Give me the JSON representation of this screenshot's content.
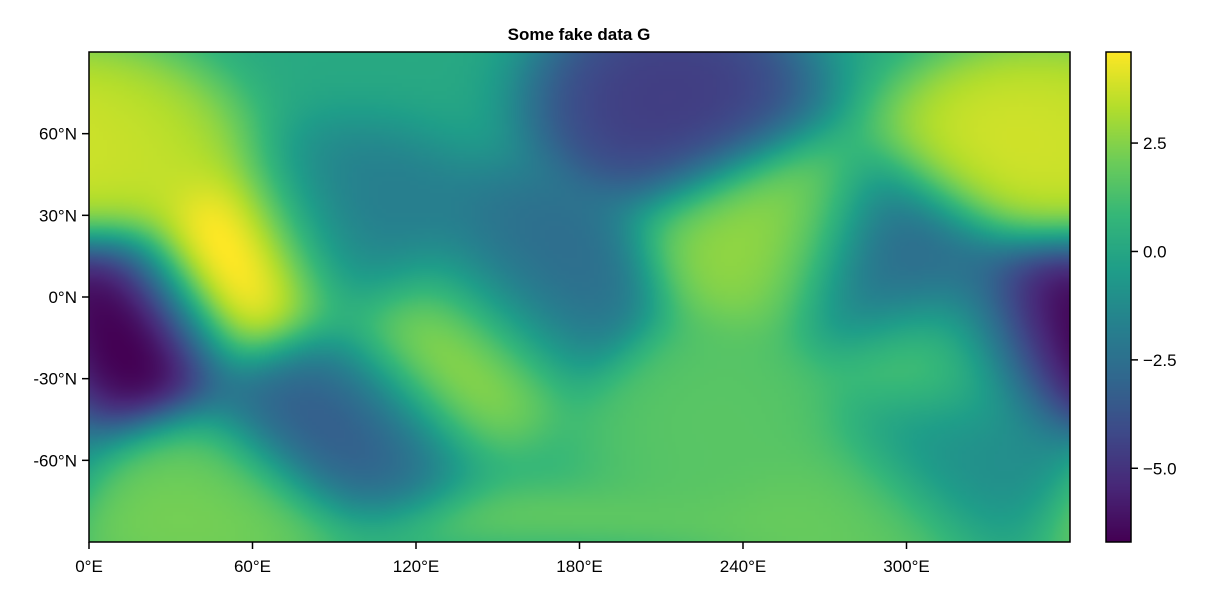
{
  "chart_data": {
    "type": "heatmap",
    "title": "Some fake data G",
    "xlabel": "",
    "ylabel": "",
    "xlim": [
      0,
      360
    ],
    "ylim": [
      -90,
      90
    ],
    "x_ticks": [
      {
        "value": 0,
        "label": "0°E"
      },
      {
        "value": 60,
        "label": "60°E"
      },
      {
        "value": 120,
        "label": "120°E"
      },
      {
        "value": 180,
        "label": "180°E"
      },
      {
        "value": 240,
        "label": "240°E"
      },
      {
        "value": 300,
        "label": "300°E"
      }
    ],
    "y_ticks": [
      {
        "value": 60,
        "label": "60°N"
      },
      {
        "value": 30,
        "label": "30°N"
      },
      {
        "value": 0,
        "label": "0°N"
      },
      {
        "value": -30,
        "label": "-30°N"
      },
      {
        "value": -60,
        "label": "-60°N"
      }
    ],
    "colorbar": {
      "colormap": "viridis",
      "range": [
        -6.7,
        4.6
      ],
      "ticks": [
        {
          "value": 2.5,
          "label": "2.5"
        },
        {
          "value": 0.0,
          "label": "0.0"
        },
        {
          "value": -2.5,
          "label": "−2.5"
        },
        {
          "value": -5.0,
          "label": "−5.0"
        }
      ]
    },
    "features": [
      {
        "lon": 10,
        "lat": -12,
        "value": -6.7
      },
      {
        "lon": 54,
        "lat": 8,
        "value": 4.6
      },
      {
        "lon": 130,
        "lat": -16,
        "value": 2.5
      },
      {
        "lon": 250,
        "lat": 22,
        "value": 1.8
      },
      {
        "lon": 340,
        "lat": 50,
        "value": 2.6
      },
      {
        "lon": 5,
        "lat": 50,
        "value": 2.3
      },
      {
        "lon": 215,
        "lat": 70,
        "value": -4.2
      },
      {
        "lon": 355,
        "lat": -10,
        "value": -5.8
      },
      {
        "lon": 90,
        "lat": -40,
        "value": -3.4
      },
      {
        "lon": 320,
        "lat": -20,
        "value": 1.6
      },
      {
        "lon": 300,
        "lat": 12,
        "value": -3.2
      },
      {
        "lon": 160,
        "lat": 5,
        "value": -2.8
      },
      {
        "lon": 95,
        "lat": 20,
        "value": -2.2
      },
      {
        "lon": 320,
        "lat": -55,
        "value": -1.6
      },
      {
        "lon": 230,
        "lat": -45,
        "value": 0.8
      },
      {
        "lon": 40,
        "lat": -75,
        "value": 1.2
      },
      {
        "lon": 280,
        "lat": -80,
        "value": 1.0
      }
    ]
  },
  "colors": {
    "frame": "#000000",
    "background": "#ffffff"
  }
}
